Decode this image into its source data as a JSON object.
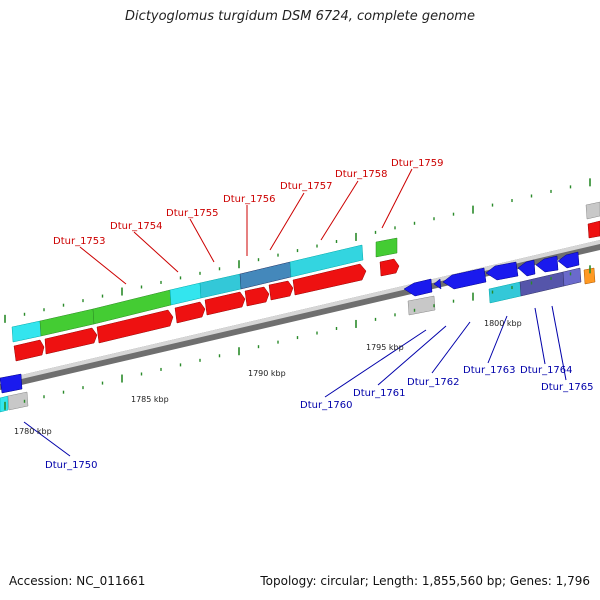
{
  "title": "Dictyoglomus turgidum DSM 6724, complete genome",
  "footer": {
    "accession": "Accession: NC_011661",
    "summary": "Topology: circular; Length: 1,855,560 bp; Genes: 1,796"
  },
  "colors": {
    "forward_label": "#cc0000",
    "reverse_label": "#0000aa",
    "red_gene": "#ee1111",
    "green_gene": "#44cc33",
    "cyan_gene": "#33e5ee",
    "blue_gene": "#1a1aee",
    "gray_gene": "#c8c8c8",
    "orange_gene": "#ff9922",
    "backbone": "#9a9a9a",
    "tick": "#2a8a2a"
  },
  "scale_labels": [
    "1780 kbp",
    "1785 kbp",
    "1790 kbp",
    "1795 kbp",
    "1800 kbp"
  ],
  "forward_gene_labels": [
    "Dtur_1753",
    "Dtur_1754",
    "Dtur_1755",
    "Dtur_1756",
    "Dtur_1757",
    "Dtur_1758",
    "Dtur_1759"
  ],
  "reverse_gene_labels": [
    "Dtur_1750",
    "Dtur_1760",
    "Dtur_1761",
    "Dtur_1762",
    "Dtur_1763",
    "Dtur_1764",
    "Dtur_1765"
  ]
}
